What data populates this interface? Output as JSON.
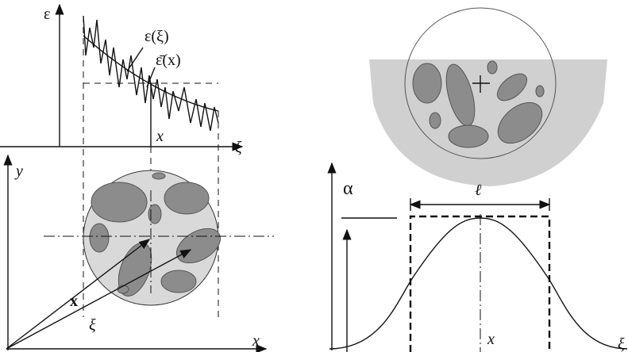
{
  "left_top": {
    "axis_label": "ε",
    "curve_label": "ε(ξ)",
    "mean_label": "ε̄(x)",
    "point_label": "x",
    "abscissa_label": "ξ"
  },
  "left_bottom": {
    "axis_y_label": "y",
    "vector_x_label": "x",
    "vector_xi_label": "ξ",
    "axis_x_label": "x"
  },
  "right_bottom": {
    "axis_label": "α",
    "width_label": "ℓ",
    "point_label": "x",
    "abscissa_label": "ξ"
  }
}
